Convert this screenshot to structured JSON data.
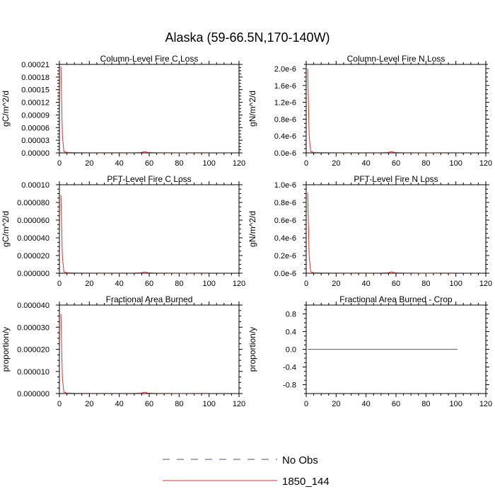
{
  "figure": {
    "title": "Alaska (59-66.5N,170-140W)",
    "legend": {
      "entries": [
        {
          "label": "No Obs",
          "color": "#4a4aa8",
          "style": "dashed"
        },
        {
          "label": "1850_144",
          "color": "#e0302a",
          "style": "solid"
        }
      ]
    }
  },
  "chart_data": [
    {
      "type": "line",
      "title": "Column-Level Fire C Loss",
      "xlabel": "",
      "ylabel": "gC/m^2/d",
      "xlim": [
        0,
        120
      ],
      "ylim": [
        0,
        0.00021
      ],
      "xticks": [
        "0",
        "20",
        "40",
        "60",
        "80",
        "100",
        "120"
      ],
      "yticks": [
        {
          "v": 0,
          "label": "0.00000"
        },
        {
          "v": 3e-05,
          "label": "0.00003"
        },
        {
          "v": 6e-05,
          "label": "0.00006"
        },
        {
          "v": 9e-05,
          "label": "0.00009"
        },
        {
          "v": 0.00012,
          "label": "0.00012"
        },
        {
          "v": 0.00015,
          "label": "0.00015"
        },
        {
          "v": 0.00018,
          "label": "0.00018"
        },
        {
          "v": 0.00021,
          "label": "0.00021"
        }
      ],
      "series": [
        {
          "name": "1850_144",
          "color": "#e0302a",
          "x": [
            1,
            2,
            3,
            5,
            10,
            20,
            30,
            40,
            50,
            55,
            57,
            59,
            65,
            70,
            80,
            90,
            100
          ],
          "y": [
            0.000205,
            4e-05,
            3e-06,
            1.2e-06,
            8e-07,
            6e-07,
            6e-07,
            6e-07,
            7e-07,
            1.2e-06,
            3e-06,
            1.2e-06,
            6e-07,
            6e-07,
            5e-07,
            6e-07,
            6e-07
          ]
        }
      ]
    },
    {
      "type": "line",
      "title": "Column-Level Fire N Loss",
      "xlabel": "",
      "ylabel": "gN/m^2/d",
      "xlim": [
        0,
        120
      ],
      "ylim": [
        0,
        2.1e-06
      ],
      "xticks": [
        "0",
        "20",
        "40",
        "60",
        "80",
        "100",
        "120"
      ],
      "yticks": [
        {
          "v": 0,
          "label": "0.0e-6"
        },
        {
          "v": 4e-07,
          "label": "0.4e-6"
        },
        {
          "v": 8e-07,
          "label": "0.8e-6"
        },
        {
          "v": 1.2e-06,
          "label": "1.2e-6"
        },
        {
          "v": 1.6e-06,
          "label": "1.6e-6"
        },
        {
          "v": 2e-06,
          "label": "2.0e-6"
        }
      ],
      "series": [
        {
          "name": "1850_144",
          "color": "#e0302a",
          "x": [
            1,
            2,
            3,
            5,
            10,
            20,
            30,
            40,
            50,
            55,
            57,
            59,
            65,
            70,
            80,
            90,
            100
          ],
          "y": [
            2e-06,
            4e-07,
            3e-08,
            1.2e-08,
            8e-09,
            6e-09,
            6e-09,
            6e-09,
            7e-09,
            1.2e-08,
            3e-08,
            1.2e-08,
            6e-09,
            6e-09,
            5e-09,
            6e-09,
            6e-09
          ]
        }
      ]
    },
    {
      "type": "line",
      "title": "PFT-Level Fire C Loss",
      "xlabel": "",
      "ylabel": "gC/m^2/d",
      "xlim": [
        0,
        120
      ],
      "ylim": [
        0,
        0.0001
      ],
      "xticks": [
        "0",
        "20",
        "40",
        "60",
        "80",
        "100",
        "120"
      ],
      "yticks": [
        {
          "v": 0,
          "label": "0.000000"
        },
        {
          "v": 2e-05,
          "label": "0.000020"
        },
        {
          "v": 4e-05,
          "label": "0.000040"
        },
        {
          "v": 6e-05,
          "label": "0.000060"
        },
        {
          "v": 8e-05,
          "label": "0.000080"
        },
        {
          "v": 0.0001,
          "label": "0.00010"
        }
      ],
      "series": [
        {
          "name": "1850_144",
          "color": "#e0302a",
          "x": [
            1,
            2,
            3,
            5,
            10,
            20,
            30,
            40,
            50,
            55,
            57,
            59,
            65,
            70,
            80,
            90,
            100
          ],
          "y": [
            8.8e-05,
            1.8e-05,
            1.5e-06,
            6e-07,
            4e-07,
            3e-07,
            3e-07,
            3e-07,
            3.5e-07,
            6e-07,
            1.5e-06,
            6e-07,
            3e-07,
            3e-07,
            2.5e-07,
            3e-07,
            3e-07
          ]
        }
      ]
    },
    {
      "type": "line",
      "title": "PFT-Level Fire N Loss",
      "xlabel": "",
      "ylabel": "gN/m^2/d",
      "xlim": [
        0,
        120
      ],
      "ylim": [
        0,
        1e-06
      ],
      "xticks": [
        "0",
        "20",
        "40",
        "60",
        "80",
        "100",
        "120"
      ],
      "yticks": [
        {
          "v": 0,
          "label": "0.0e-6"
        },
        {
          "v": 2e-07,
          "label": "0.2e-6"
        },
        {
          "v": 4e-07,
          "label": "0.4e-6"
        },
        {
          "v": 6e-07,
          "label": "0.6e-6"
        },
        {
          "v": 8e-07,
          "label": "0.8e-6"
        },
        {
          "v": 1e-06,
          "label": "1.0e-6"
        }
      ],
      "series": [
        {
          "name": "1850_144",
          "color": "#e0302a",
          "x": [
            1,
            2,
            3,
            5,
            10,
            20,
            30,
            40,
            50,
            55,
            57,
            59,
            65,
            70,
            80,
            90,
            100
          ],
          "y": [
            9.1e-07,
            1.9e-07,
            1.6e-08,
            6e-09,
            4e-09,
            3e-09,
            3e-09,
            3e-09,
            3.5e-09,
            6e-09,
            1.6e-08,
            6e-09,
            3e-09,
            3e-09,
            2.5e-09,
            3e-09,
            3e-09
          ]
        }
      ]
    },
    {
      "type": "line",
      "title": "Fractional Area Burned",
      "xlabel": "",
      "ylabel": "proportion/y",
      "xlim": [
        0,
        120
      ],
      "ylim": [
        0,
        4e-05
      ],
      "xticks": [
        "0",
        "20",
        "40",
        "60",
        "80",
        "100",
        "120"
      ],
      "yticks": [
        {
          "v": 0,
          "label": "0.000000"
        },
        {
          "v": 1e-05,
          "label": "0.000010"
        },
        {
          "v": 2e-05,
          "label": "0.000020"
        },
        {
          "v": 3e-05,
          "label": "0.000030"
        },
        {
          "v": 4e-05,
          "label": "0.000040"
        }
      ],
      "series": [
        {
          "name": "1850_144",
          "color": "#e0302a",
          "x": [
            1,
            2,
            3,
            5,
            10,
            20,
            30,
            40,
            50,
            55,
            57,
            59,
            65,
            70,
            80,
            90,
            100
          ],
          "y": [
            3.6e-05,
            7e-06,
            6e-07,
            2.5e-07,
            1.6e-07,
            1.2e-07,
            1.2e-07,
            1.2e-07,
            1.4e-07,
            2.5e-07,
            6e-07,
            2.5e-07,
            1.2e-07,
            1.2e-07,
            1e-07,
            1.2e-07,
            1.2e-07
          ]
        }
      ]
    },
    {
      "type": "line",
      "title": "Fractional Area Burned - Crop",
      "xlabel": "",
      "ylabel": "proportion/y",
      "xlim": [
        0,
        120
      ],
      "ylim": [
        -1,
        1
      ],
      "xticks": [
        "0",
        "20",
        "40",
        "60",
        "80",
        "100",
        "120"
      ],
      "yticks": [
        {
          "v": -0.8,
          "label": "-0.8"
        },
        {
          "v": -0.4,
          "label": "-0.4"
        },
        {
          "v": 0,
          "label": "0.0"
        },
        {
          "v": 0.4,
          "label": "0.4"
        },
        {
          "v": 0.8,
          "label": "0.8"
        }
      ],
      "series": [
        {
          "name": "1850_144",
          "color": "#e0302a",
          "x": [
            1,
            101
          ],
          "y": [
            0,
            0
          ]
        }
      ]
    }
  ]
}
